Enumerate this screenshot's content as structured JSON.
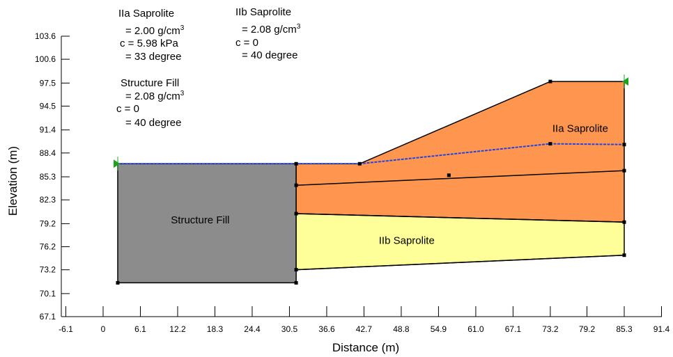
{
  "chart_data": {
    "type": "diagram",
    "xlabel": "Distance (m)",
    "ylabel": "Elevation (m)",
    "xlim": [
      -6.1,
      91.4
    ],
    "ylim": [
      67.1,
      103.6
    ],
    "x_ticks": [
      "-6.1",
      "0",
      "6.1",
      "12.2",
      "18.3",
      "24.4",
      "30.5",
      "36.6",
      "42.7",
      "48.8",
      "54.9",
      "61.0",
      "67.1",
      "73.2",
      "79.2",
      "85.3",
      "91.4"
    ],
    "y_ticks": [
      "67.1",
      "70.1",
      "73.2",
      "76.2",
      "79.2",
      "82.3",
      "85.3",
      "88.4",
      "91.4",
      "94.5",
      "97.5",
      "100.6",
      "103.6"
    ],
    "colors": {
      "structure_fill": "#8c8c8c",
      "saprolite_IIa": "#ff9650",
      "saprolite_IIb": "#ffff99",
      "water_line": "#2244dd",
      "boundary": "#000000",
      "marker": "#1fa01f"
    },
    "regions": [
      {
        "name": "Structure Fill",
        "color_key": "structure_fill",
        "points": [
          [
            2.4,
            71.5
          ],
          [
            31.6,
            71.5
          ],
          [
            31.6,
            87.0
          ],
          [
            2.4,
            87.0
          ]
        ]
      },
      {
        "name": "IIa Saprolite",
        "color_key": "saprolite_IIa",
        "points": [
          [
            31.6,
            80.5
          ],
          [
            85.3,
            79.4
          ],
          [
            85.3,
            97.7
          ],
          [
            73.2,
            97.7
          ],
          [
            42.0,
            87.0
          ],
          [
            31.6,
            87.0
          ]
        ]
      },
      {
        "name": "IIb Saprolite",
        "color_key": "saprolite_IIb",
        "points": [
          [
            31.6,
            73.2
          ],
          [
            85.3,
            75.1
          ],
          [
            85.3,
            79.4
          ],
          [
            31.6,
            80.5
          ]
        ]
      }
    ],
    "boundary_lines": [
      [
        [
          31.6,
          84.2
        ],
        [
          85.3,
          86.1
        ]
      ],
      [
        [
          31.6,
          80.5
        ],
        [
          85.3,
          79.4
        ]
      ],
      [
        [
          31.6,
          73.2
        ],
        [
          85.3,
          75.1
        ]
      ]
    ],
    "water_line": [
      [
        2.4,
        87.0
      ],
      [
        42.0,
        87.0
      ],
      [
        73.2,
        89.6
      ],
      [
        85.3,
        89.5
      ]
    ],
    "nodes": [
      [
        2.4,
        71.5
      ],
      [
        31.6,
        71.5
      ],
      [
        31.6,
        87.0
      ],
      [
        31.6,
        84.2
      ],
      [
        31.6,
        80.5
      ],
      [
        31.6,
        73.2
      ],
      [
        42.0,
        87.0
      ],
      [
        73.2,
        97.7
      ],
      [
        73.2,
        89.6
      ],
      [
        85.3,
        89.5
      ],
      [
        85.3,
        86.1
      ],
      [
        85.3,
        79.4
      ],
      [
        85.3,
        75.1
      ],
      [
        56.6,
        85.5
      ]
    ],
    "markers": [
      [
        2.4,
        87.0
      ],
      [
        85.3,
        97.7
      ]
    ]
  },
  "materials": [
    {
      "title": "IIa Saprolite",
      "lines": [
        "= 2.00 g/cm",
        "c = 5.98 kPa",
        "= 33 degree"
      ],
      "unit_superscript": "3"
    },
    {
      "title": "IIb Saprolite",
      "lines": [
        "= 2.08 g/cm",
        "c = 0",
        "= 40 degree"
      ],
      "unit_superscript": "3"
    },
    {
      "title": "Structure Fill",
      "lines": [
        "= 2.08 g/cm",
        "c = 0",
        "= 40 degree"
      ],
      "unit_superscript": "3"
    }
  ],
  "region_labels": [
    {
      "text": "Structure Fill",
      "at": [
        15.9,
        79.7
      ]
    },
    {
      "text": "IIb Saprolite",
      "at": [
        49.7,
        77.0
      ]
    },
    {
      "text": "IIa Saprolite",
      "at": [
        78.1,
        91.6
      ]
    }
  ]
}
